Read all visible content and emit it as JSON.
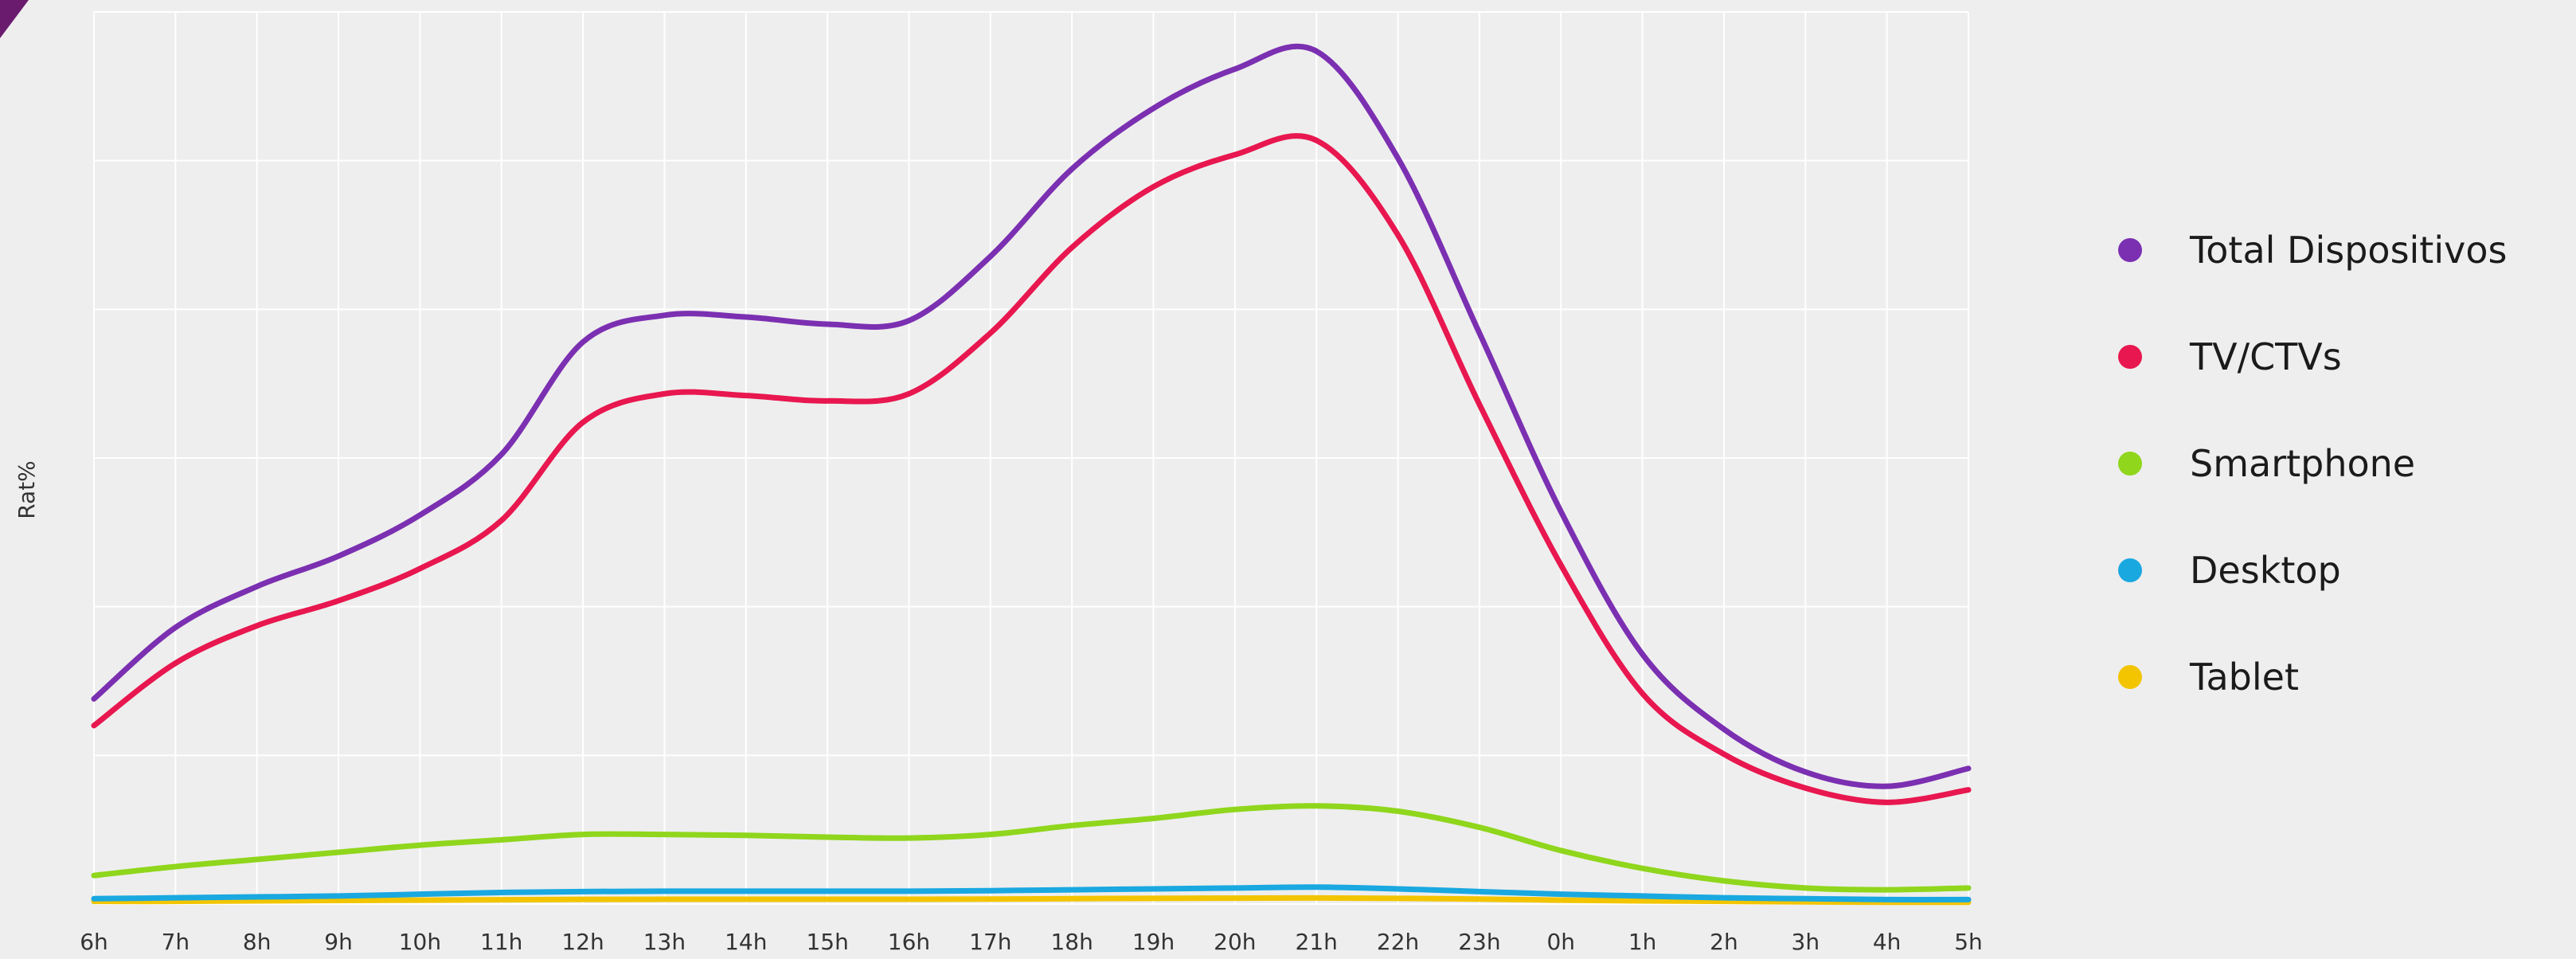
{
  "chart_data": {
    "type": "line",
    "title": "",
    "xlabel": "",
    "ylabel": "Rat%",
    "grid": true,
    "legend_position": "right",
    "categories": [
      "6h",
      "7h",
      "8h",
      "9h",
      "10h",
      "11h",
      "12h",
      "13h",
      "14h",
      "15h",
      "16h",
      "17h",
      "18h",
      "19h",
      "20h",
      "21h",
      "22h",
      "23h",
      "0h",
      "1h",
      "2h",
      "3h",
      "4h",
      "5h"
    ],
    "ylim": [
      0,
      50
    ],
    "series": [
      {
        "name": "Total Dispositivos",
        "color": "#7b2fb1",
        "values": [
          11.5,
          15.5,
          17.8,
          19.5,
          21.8,
          25.2,
          31.5,
          33.0,
          32.9,
          32.5,
          32.7,
          36.3,
          41.2,
          44.6,
          46.8,
          47.8,
          41.8,
          32.0,
          22.0,
          14.0,
          9.8,
          7.4,
          6.6,
          7.6
        ]
      },
      {
        "name": "TV/CTVs",
        "color": "#e8174f",
        "values": [
          10.0,
          13.5,
          15.6,
          17.0,
          18.8,
          21.5,
          27.0,
          28.6,
          28.5,
          28.2,
          28.6,
          32.0,
          36.8,
          40.2,
          42.0,
          42.8,
          37.5,
          28.0,
          19.0,
          11.8,
          8.4,
          6.5,
          5.7,
          6.4
        ]
      },
      {
        "name": "Smartphone",
        "color": "#8fd61c",
        "values": [
          1.6,
          2.1,
          2.5,
          2.9,
          3.3,
          3.6,
          3.9,
          3.9,
          3.85,
          3.75,
          3.7,
          3.9,
          4.4,
          4.8,
          5.3,
          5.5,
          5.2,
          4.3,
          3.0,
          2.0,
          1.3,
          0.9,
          0.8,
          0.9
        ]
      },
      {
        "name": "Desktop",
        "color": "#1aa8e0",
        "values": [
          0.3,
          0.35,
          0.4,
          0.45,
          0.55,
          0.65,
          0.7,
          0.72,
          0.72,
          0.72,
          0.72,
          0.75,
          0.8,
          0.85,
          0.9,
          0.95,
          0.85,
          0.7,
          0.55,
          0.45,
          0.35,
          0.3,
          0.25,
          0.25
        ]
      },
      {
        "name": "Tablet",
        "color": "#f2c500",
        "values": [
          0.15,
          0.15,
          0.18,
          0.2,
          0.22,
          0.24,
          0.26,
          0.27,
          0.27,
          0.27,
          0.27,
          0.28,
          0.3,
          0.32,
          0.33,
          0.34,
          0.32,
          0.28,
          0.22,
          0.18,
          0.15,
          0.12,
          0.1,
          0.1
        ]
      }
    ]
  },
  "theme": {
    "background": "#eeeeee",
    "grid_color": "#ffffff",
    "corner_mark_color": "#6a1b6e"
  }
}
